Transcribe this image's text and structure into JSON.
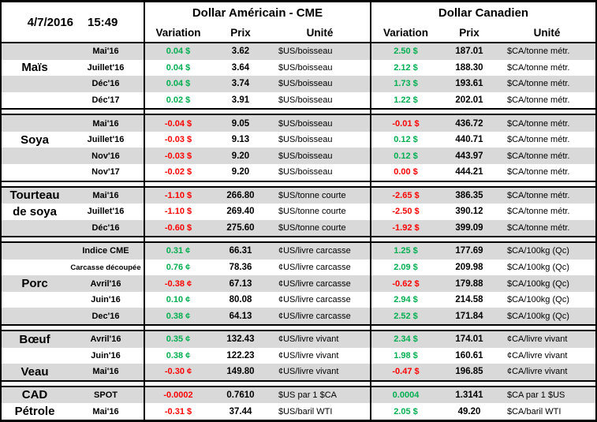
{
  "header": {
    "date": "4/7/2016",
    "time": "15:49",
    "us_title": "Dollar Américain - CME",
    "ca_title": "Dollar Canadien",
    "col_variation": "Variation",
    "col_prix": "Prix",
    "col_unite": "Unité"
  },
  "colors": {
    "positive": "#00B050",
    "negative": "#FF0000",
    "row_shade": "#D9D9D9"
  },
  "sections": [
    {
      "id": "mais",
      "rows": [
        {
          "cat": "",
          "month": "Mai'16",
          "us": {
            "var": "0.04 $",
            "dir": "up",
            "prix": "3.62",
            "unit": "$US/boisseau"
          },
          "ca": {
            "var": "2.50 $",
            "dir": "up",
            "prix": "187.01",
            "unit": "$CA/tonne métr."
          }
        },
        {
          "cat": "Maïs",
          "month": "Juillet'16",
          "us": {
            "var": "0.04 $",
            "dir": "up",
            "prix": "3.64",
            "unit": "$US/boisseau"
          },
          "ca": {
            "var": "2.12 $",
            "dir": "up",
            "prix": "188.30",
            "unit": "$CA/tonne métr."
          }
        },
        {
          "cat": "",
          "month": "Déc'16",
          "us": {
            "var": "0.04 $",
            "dir": "up",
            "prix": "3.74",
            "unit": "$US/boisseau"
          },
          "ca": {
            "var": "1.73 $",
            "dir": "up",
            "prix": "193.61",
            "unit": "$CA/tonne métr."
          }
        },
        {
          "cat": "",
          "month": "Déc'17",
          "us": {
            "var": "0.02 $",
            "dir": "up",
            "prix": "3.91",
            "unit": "$US/boisseau"
          },
          "ca": {
            "var": "1.22 $",
            "dir": "up",
            "prix": "202.01",
            "unit": "$CA/tonne métr."
          }
        }
      ]
    },
    {
      "id": "soya",
      "rows": [
        {
          "cat": "",
          "month": "Mai'16",
          "us": {
            "var": "-0.04 $",
            "dir": "down",
            "prix": "9.05",
            "unit": "$US/boisseau"
          },
          "ca": {
            "var": "-0.01 $",
            "dir": "down",
            "prix": "436.72",
            "unit": "$CA/tonne métr."
          }
        },
        {
          "cat": "Soya",
          "month": "Juillet'16",
          "us": {
            "var": "-0.03 $",
            "dir": "down",
            "prix": "9.13",
            "unit": "$US/boisseau"
          },
          "ca": {
            "var": "0.12 $",
            "dir": "up",
            "prix": "440.71",
            "unit": "$CA/tonne métr."
          }
        },
        {
          "cat": "",
          "month": "Nov'16",
          "us": {
            "var": "-0.03 $",
            "dir": "down",
            "prix": "9.20",
            "unit": "$US/boisseau"
          },
          "ca": {
            "var": "0.12 $",
            "dir": "up",
            "prix": "443.97",
            "unit": "$CA/tonne métr."
          }
        },
        {
          "cat": "",
          "month": "Nov'17",
          "us": {
            "var": "-0.02 $",
            "dir": "down",
            "prix": "9.20",
            "unit": "$US/boisseau"
          },
          "ca": {
            "var": "0.00 $",
            "dir": "down",
            "prix": "444.21",
            "unit": "$CA/tonne métr."
          }
        }
      ]
    },
    {
      "id": "tourteau-de-soya",
      "rows": [
        {
          "cat": "Tourteau",
          "month": "Mai'16",
          "us": {
            "var": "-1.10 $",
            "dir": "down",
            "prix": "266.80",
            "unit": "$US/tonne courte"
          },
          "ca": {
            "var": "-2.65 $",
            "dir": "down",
            "prix": "386.35",
            "unit": "$CA/tonne métr."
          }
        },
        {
          "cat": "de soya",
          "month": "Juillet'16",
          "us": {
            "var": "-1.10 $",
            "dir": "down",
            "prix": "269.40",
            "unit": "$US/tonne courte"
          },
          "ca": {
            "var": "-2.50 $",
            "dir": "down",
            "prix": "390.12",
            "unit": "$CA/tonne métr."
          }
        },
        {
          "cat": "",
          "month": "Déc'16",
          "us": {
            "var": "-0.60 $",
            "dir": "down",
            "prix": "275.60",
            "unit": "$US/tonne courte"
          },
          "ca": {
            "var": "-1.92 $",
            "dir": "down",
            "prix": "399.09",
            "unit": "$CA/tonne métr."
          }
        }
      ]
    },
    {
      "id": "porc",
      "rows": [
        {
          "cat": "",
          "month": "Indice CME",
          "us": {
            "var": "0.31 ¢",
            "dir": "up",
            "prix": "66.31",
            "unit": "¢US/livre carcasse"
          },
          "ca": {
            "var": "1.25 $",
            "dir": "up",
            "prix": "177.69",
            "unit": "$CA/100kg (Qc)"
          }
        },
        {
          "cat": "",
          "month": "Carcasse découpée",
          "us": {
            "var": "0.76 ¢",
            "dir": "up",
            "prix": "78.36",
            "unit": "¢US/livre carcasse"
          },
          "ca": {
            "var": "2.09 $",
            "dir": "up",
            "prix": "209.98",
            "unit": "$CA/100kg (Qc)"
          }
        },
        {
          "cat": "Porc",
          "month": "Avril'16",
          "us": {
            "var": "-0.38 ¢",
            "dir": "down",
            "prix": "67.13",
            "unit": "¢US/livre carcasse"
          },
          "ca": {
            "var": "-0.62 $",
            "dir": "down",
            "prix": "179.88",
            "unit": "$CA/100kg (Qc)"
          }
        },
        {
          "cat": "",
          "month": "Juin'16",
          "us": {
            "var": "0.10 ¢",
            "dir": "up",
            "prix": "80.08",
            "unit": "¢US/livre carcasse"
          },
          "ca": {
            "var": "2.94 $",
            "dir": "up",
            "prix": "214.58",
            "unit": "$CA/100kg (Qc)"
          }
        },
        {
          "cat": "",
          "month": "Dec'16",
          "us": {
            "var": "0.38 ¢",
            "dir": "up",
            "prix": "64.13",
            "unit": "¢US/livre carcasse"
          },
          "ca": {
            "var": "2.52 $",
            "dir": "up",
            "prix": "171.84",
            "unit": "$CA/100kg (Qc)"
          }
        }
      ]
    },
    {
      "id": "boeuf-veau",
      "rows": [
        {
          "cat": "Bœuf",
          "month": "Avril'16",
          "us": {
            "var": "0.35 ¢",
            "dir": "up",
            "prix": "132.43",
            "unit": "¢US/livre vivant"
          },
          "ca": {
            "var": "2.34 $",
            "dir": "up",
            "prix": "174.01",
            "unit": "¢CA/livre vivant"
          }
        },
        {
          "cat": "",
          "month": "Juin'16",
          "us": {
            "var": "0.38 ¢",
            "dir": "up",
            "prix": "122.23",
            "unit": "¢US/livre vivant"
          },
          "ca": {
            "var": "1.98 $",
            "dir": "up",
            "prix": "160.61",
            "unit": "¢CA/livre vivant"
          }
        },
        {
          "cat": "Veau",
          "month": "Mai'16",
          "us": {
            "var": "-0.30 ¢",
            "dir": "down",
            "prix": "149.80",
            "unit": "¢US/livre vivant"
          },
          "ca": {
            "var": "-0.47 $",
            "dir": "down",
            "prix": "196.85",
            "unit": "¢CA/livre vivant"
          }
        }
      ]
    },
    {
      "id": "cad-petrole",
      "rows": [
        {
          "cat": "CAD",
          "month": "SPOT",
          "us": {
            "var": "-0.0002",
            "dir": "down",
            "prix": "0.7610",
            "unit": "$US par 1 $CA"
          },
          "ca": {
            "var": "0.0004",
            "dir": "up",
            "prix": "1.3141",
            "unit": "$CA par 1 $US"
          }
        },
        {
          "cat": "Pétrole",
          "month": "Mai'16",
          "us": {
            "var": "-0.31 $",
            "dir": "down",
            "prix": "37.44",
            "unit": "$US/baril WTI"
          },
          "ca": {
            "var": "2.05 $",
            "dir": "up",
            "prix": "49.20",
            "unit": "$CA/baril WTI"
          }
        }
      ]
    }
  ]
}
